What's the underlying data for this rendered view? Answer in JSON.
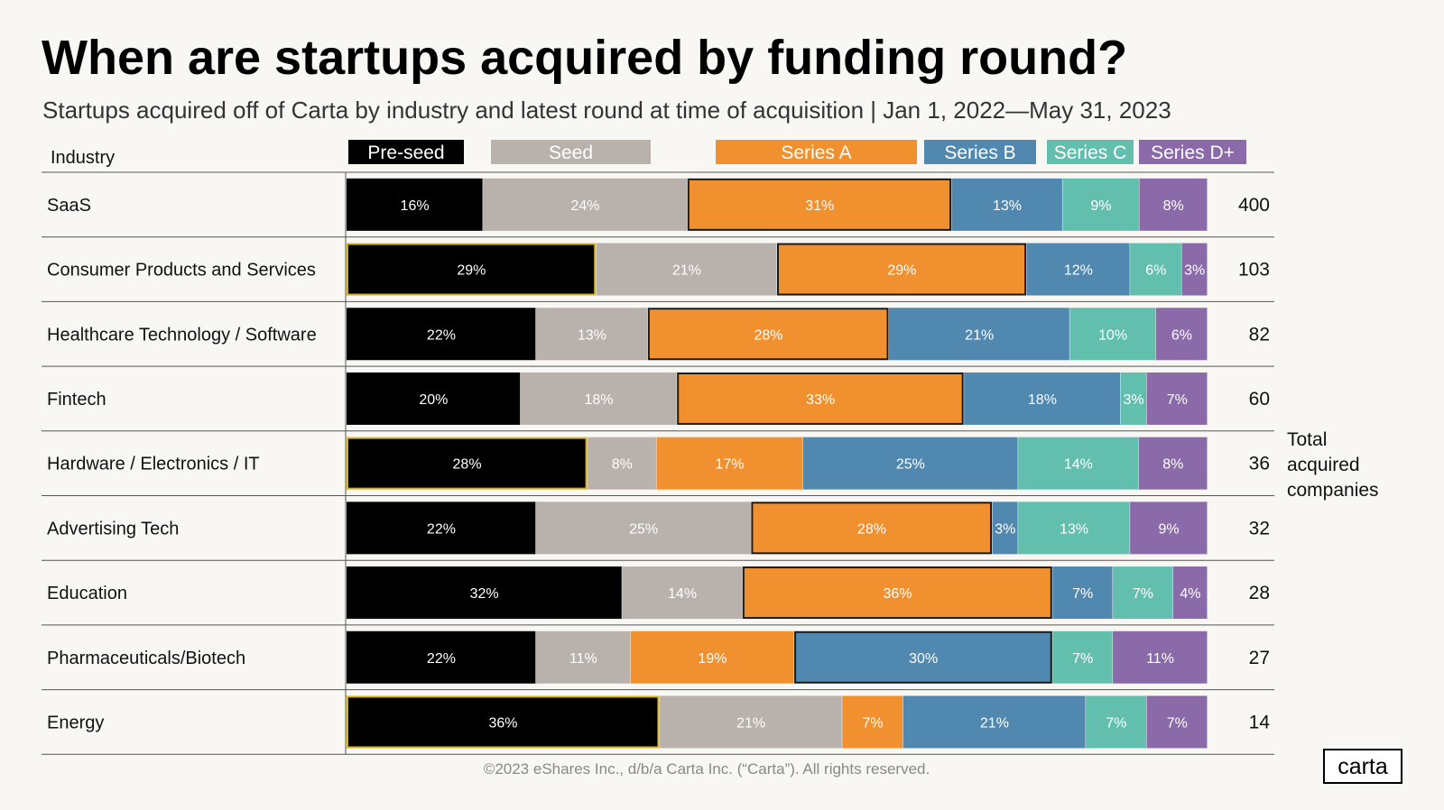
{
  "chart_data": {
    "type": "bar",
    "stacked": true,
    "orientation": "horizontal",
    "normalized": true,
    "title": "When are startups acquired by funding round?",
    "subtitle": "Startups acquired off of Carta by industry and latest round at time of acquisition | Jan 1, 2022—May 31, 2023",
    "category_header": "Industry",
    "total_label": "Total acquired companies",
    "categories": [
      "SaaS",
      "Consumer Products and Services",
      "Healthcare Technology / Software",
      "Fintech",
      "Hardware / Electronics / IT",
      "Advertising Tech",
      "Education",
      "Pharmaceuticals/Biotech",
      "Energy"
    ],
    "totals": [
      400,
      103,
      82,
      60,
      36,
      32,
      28,
      27,
      14
    ],
    "series": [
      {
        "name": "Pre-seed",
        "color": "#000000",
        "values": [
          16,
          29,
          22,
          20,
          28,
          22,
          32,
          22,
          36
        ]
      },
      {
        "name": "Seed",
        "color": "#b9b1ac",
        "values": [
          24,
          21,
          13,
          18,
          8,
          25,
          14,
          11,
          21
        ]
      },
      {
        "name": "Series A",
        "color": "#f0902e",
        "values": [
          31,
          29,
          28,
          33,
          17,
          28,
          36,
          19,
          7
        ]
      },
      {
        "name": "Series B",
        "color": "#5088b0",
        "values": [
          13,
          12,
          21,
          18,
          25,
          3,
          7,
          30,
          21
        ]
      },
      {
        "name": "Series C",
        "color": "#62bfae",
        "values": [
          9,
          6,
          10,
          3,
          14,
          13,
          7,
          7,
          7
        ]
      },
      {
        "name": "Series D+",
        "color": "#8a6aa8",
        "values": [
          8,
          3,
          6,
          7,
          8,
          9,
          4,
          11,
          7
        ]
      }
    ],
    "value_suffix": "%",
    "highlighted_segments": [
      [
        2
      ],
      [
        0,
        2
      ],
      [
        2
      ],
      [
        2
      ],
      [
        0
      ],
      [
        2
      ],
      [
        2
      ],
      [
        3
      ],
      [
        0
      ]
    ],
    "legend_placement": "top"
  },
  "footer": {
    "copyright": "©2023 eShares Inc., d/b/a Carta Inc. (“Carta”). All rights reserved."
  },
  "logo": {
    "text": "carta"
  }
}
